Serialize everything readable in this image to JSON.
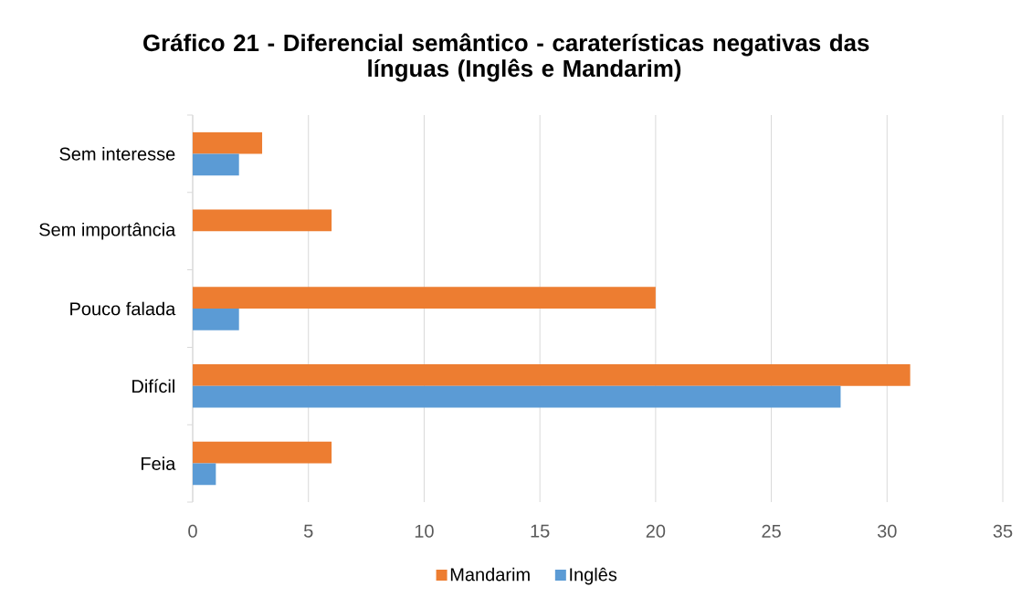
{
  "chart_data": {
    "type": "bar",
    "orientation": "horizontal",
    "title": "Gráfico 21 - Diferencial semântico - caraterísticas negativas das línguas (Inglês e Mandarim)",
    "categories": [
      "Sem interesse",
      "Sem importância",
      "Pouco falada",
      "Difícil",
      "Feia"
    ],
    "series": [
      {
        "name": "Mandarim",
        "color": "#ed7d31",
        "values": [
          3,
          6,
          20,
          31,
          6
        ]
      },
      {
        "name": "Inglês",
        "color": "#5b9bd5",
        "values": [
          2,
          null,
          2,
          28,
          1
        ]
      }
    ],
    "xlim": [
      0,
      35
    ],
    "xticks": [
      0,
      5,
      10,
      15,
      20,
      25,
      30,
      35
    ],
    "grid": "x",
    "legend": "bottom"
  }
}
